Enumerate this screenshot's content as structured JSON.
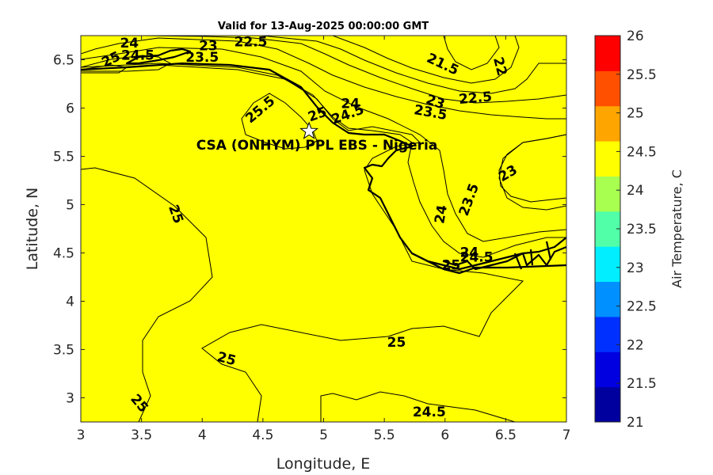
{
  "chart_data": {
    "type": "contour-map",
    "title": "Valid for 13-Aug-2025 00:00:00 GMT",
    "xlabel": "Longitude, E",
    "ylabel": "Latitude, N",
    "xlim": [
      3,
      7
    ],
    "ylim": [
      2.75,
      6.75
    ],
    "xticks": [
      3,
      3.5,
      4,
      4.5,
      5,
      5.5,
      6,
      6.5,
      7
    ],
    "yticks": [
      3,
      3.5,
      4,
      4.5,
      5,
      5.5,
      6,
      6.5
    ],
    "xtick_labels": [
      "3",
      "3.5",
      "4",
      "4.5",
      "5",
      "5.5",
      "6",
      "6.5",
      "7"
    ],
    "ytick_labels": [
      "3",
      "3.5",
      "4",
      "4.5",
      "5",
      "5.5",
      "6",
      "6.5"
    ],
    "colorbar": {
      "label": "Air Temperature, C",
      "levels": [
        21,
        21.5,
        22,
        22.5,
        23,
        23.5,
        24,
        24.5,
        25,
        25.5,
        26
      ],
      "tick_labels": [
        "21",
        "21.5",
        "22",
        "22.5",
        "23",
        "23.5",
        "24",
        "24.5",
        "25",
        "25.5",
        "26"
      ],
      "colors": [
        "#00009f",
        "#0000e0",
        "#0030ff",
        "#0090ff",
        "#00eeff",
        "#50ffa8",
        "#a8ff50",
        "#ffff00",
        "#ffa500",
        "#ff5000",
        "#ff0000"
      ]
    },
    "site": {
      "label": "CSA (ONHYM) PPL EBS - Nigeria",
      "lon": 4.88,
      "lat": 5.76
    },
    "contour_labels": [
      {
        "text": "24",
        "lon": 3.4,
        "lat": 6.67,
        "rot": 0
      },
      {
        "text": "23",
        "lon": 4.05,
        "lat": 6.64,
        "rot": 0
      },
      {
        "text": "22.5",
        "lon": 4.4,
        "lat": 6.68,
        "rot": 0
      },
      {
        "text": "23.5",
        "lon": 4.0,
        "lat": 6.52,
        "rot": 0
      },
      {
        "text": "25",
        "lon": 3.25,
        "lat": 6.5,
        "rot": -25
      },
      {
        "text": "24.5",
        "lon": 3.47,
        "lat": 6.54,
        "rot": 0
      },
      {
        "text": "21.5",
        "lon": 5.98,
        "lat": 6.45,
        "rot": 25
      },
      {
        "text": "22",
        "lon": 6.45,
        "lat": 6.43,
        "rot": 75
      },
      {
        "text": "22.5",
        "lon": 6.25,
        "lat": 6.1,
        "rot": -5
      },
      {
        "text": "23",
        "lon": 5.92,
        "lat": 6.06,
        "rot": 20
      },
      {
        "text": "23.5",
        "lon": 5.88,
        "lat": 5.95,
        "rot": 10
      },
      {
        "text": "24",
        "lon": 5.22,
        "lat": 6.04,
        "rot": 0
      },
      {
        "text": "25.5",
        "lon": 4.48,
        "lat": 5.98,
        "rot": -40
      },
      {
        "text": "25",
        "lon": 4.95,
        "lat": 5.93,
        "rot": -20
      },
      {
        "text": "24.5",
        "lon": 5.2,
        "lat": 5.93,
        "rot": -20
      },
      {
        "text": "23",
        "lon": 6.52,
        "lat": 5.32,
        "rot": -30
      },
      {
        "text": "23.5",
        "lon": 6.2,
        "lat": 5.05,
        "rot": -70
      },
      {
        "text": "24",
        "lon": 5.97,
        "lat": 4.9,
        "rot": -80
      },
      {
        "text": "25",
        "lon": 3.78,
        "lat": 4.9,
        "rot": 70
      },
      {
        "text": "24",
        "lon": 6.2,
        "lat": 4.5,
        "rot": 0
      },
      {
        "text": "24.5",
        "lon": 6.26,
        "lat": 4.45,
        "rot": 0
      },
      {
        "text": "25",
        "lon": 6.05,
        "lat": 4.37,
        "rot": 0
      },
      {
        "text": "25",
        "lon": 5.6,
        "lat": 3.57,
        "rot": 0
      },
      {
        "text": "25",
        "lon": 4.2,
        "lat": 3.4,
        "rot": 15
      },
      {
        "text": "25",
        "lon": 3.48,
        "lat": 2.94,
        "rot": 50
      },
      {
        "text": "24.5",
        "lon": 5.87,
        "lat": 2.85,
        "rot": 0
      }
    ]
  }
}
